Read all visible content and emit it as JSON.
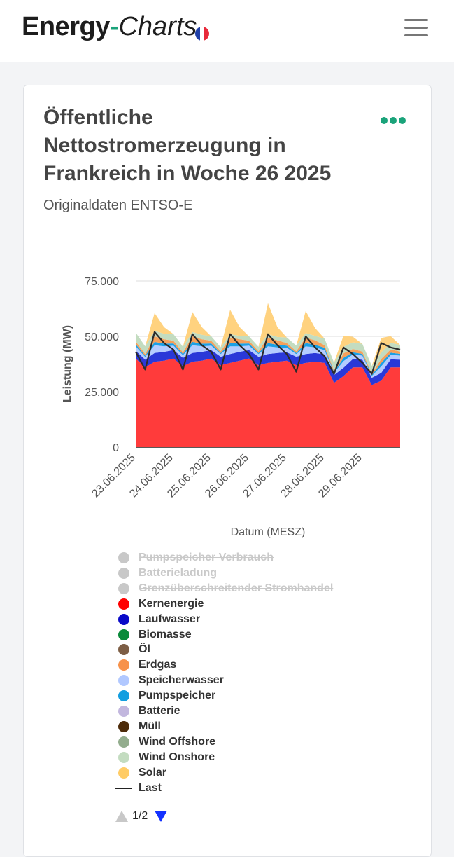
{
  "header": {
    "logo_part1": "Energy",
    "logo_dash": "-",
    "logo_part2": "Charts",
    "flag_colors": [
      "#1f3fa8",
      "#ffffff",
      "#e8293a"
    ],
    "menu_icon": "hamburger-menu-icon"
  },
  "card": {
    "title": "Öffentliche Nettostromerzeugung in Frankreich in Woche 26 2025",
    "subtitle": "Originaldaten ENTSO-E",
    "more_icon": "more-dots-icon",
    "accent_color": "#1aa37a"
  },
  "chart_data": {
    "type": "area",
    "xlabel": "Datum (MESZ)",
    "ylabel": "Leistung (MW)",
    "ylim": [
      0,
      75000
    ],
    "yticks": [
      "0",
      "25.000",
      "50.000",
      "75.000"
    ],
    "xticks": [
      "23.06.2025",
      "24.06.2025",
      "25.06.2025",
      "26.06.2025",
      "27.06.2025",
      "28.06.2025",
      "29.06.2025"
    ],
    "grid": true,
    "hours_per_point": 6,
    "series": [
      {
        "name": "Kernenergie",
        "color": "#ff3b3b",
        "values": [
          40000,
          36000,
          38500,
          39000,
          40000,
          36500,
          38500,
          39000,
          40000,
          37000,
          38000,
          39000,
          40000,
          37000,
          38000,
          38500,
          39000,
          37000,
          38000,
          38500,
          38000,
          29000,
          32000,
          36000,
          36000,
          28000,
          30000,
          36000,
          36000
        ]
      },
      {
        "name": "Laufwasser",
        "color": "#2a38d8",
        "values": [
          3500,
          3500,
          4000,
          4000,
          3800,
          3800,
          4000,
          4000,
          3800,
          3800,
          4000,
          4000,
          3800,
          3800,
          4000,
          4000,
          3800,
          3800,
          4000,
          4000,
          3800,
          3500,
          3800,
          3800,
          3500,
          3300,
          3500,
          3600,
          3500
        ]
      },
      {
        "name": "Speicherwasser",
        "color": "#b4ccff",
        "values": [
          2000,
          1200,
          3500,
          2500,
          2000,
          1200,
          3500,
          2500,
          2000,
          1200,
          3500,
          2500,
          2000,
          1200,
          3500,
          2500,
          2000,
          1200,
          3500,
          2500,
          2000,
          1000,
          3000,
          2000,
          1800,
          800,
          3000,
          2000,
          1800
        ]
      },
      {
        "name": "Pumpspeicher",
        "color": "#1ba0e6",
        "values": [
          1000,
          500,
          1500,
          1200,
          1000,
          500,
          1500,
          1200,
          1000,
          500,
          1500,
          1200,
          1000,
          500,
          1500,
          1200,
          1000,
          500,
          1500,
          1200,
          1000,
          400,
          1500,
          1000,
          800,
          400,
          1500,
          1000,
          800
        ]
      },
      {
        "name": "Erdgas",
        "color": "#f5a05a",
        "values": [
          1200,
          800,
          2500,
          2000,
          1200,
          800,
          2500,
          2000,
          1200,
          800,
          2500,
          2000,
          1200,
          800,
          2500,
          2000,
          1200,
          800,
          2500,
          2000,
          1200,
          700,
          2000,
          1500,
          1000,
          600,
          1800,
          1500,
          1000
        ]
      },
      {
        "name": "Wind Onshore",
        "color": "#c3dcc0",
        "values": [
          4000,
          3500,
          2500,
          2500,
          3000,
          2500,
          2000,
          2000,
          2000,
          1800,
          1500,
          1500,
          2000,
          2000,
          1500,
          1500,
          2500,
          2500,
          2000,
          2000,
          3000,
          3500,
          3000,
          3000,
          3500,
          3500,
          3000,
          3000,
          3000
        ]
      },
      {
        "name": "Solar",
        "color": "#ffd27f",
        "values": [
          0,
          0,
          8000,
          3000,
          0,
          0,
          9000,
          3500,
          0,
          0,
          11000,
          4000,
          0,
          0,
          14000,
          4500,
          0,
          0,
          10000,
          3500,
          0,
          0,
          5000,
          2500,
          0,
          0,
          6500,
          3000,
          0
        ]
      },
      {
        "name": "Last",
        "color": "#2b2b2b",
        "line": true,
        "values": [
          43000,
          35000,
          52000,
          47000,
          44000,
          35000,
          51000,
          46000,
          43000,
          35000,
          51000,
          46000,
          42000,
          35000,
          51000,
          46000,
          42000,
          34000,
          50000,
          45000,
          41000,
          33000,
          45000,
          42000,
          38000,
          33000,
          47000,
          45000,
          44000
        ]
      }
    ]
  },
  "legend": [
    {
      "label": "Pumpspeicher Verbrauch",
      "color": "#c8c8c8",
      "off": true
    },
    {
      "label": "Batterieladung",
      "color": "#c8c8c8",
      "off": true
    },
    {
      "label": "Grenzüberschreitender Stromhandel",
      "color": "#c8c8c8",
      "off": true
    },
    {
      "label": "Kernenergie",
      "color": "#ff0000"
    },
    {
      "label": "Laufwasser",
      "color": "#0a0ac8"
    },
    {
      "label": "Biomasse",
      "color": "#0a8a3a"
    },
    {
      "label": "Öl",
      "color": "#7d5e45"
    },
    {
      "label": "Erdgas",
      "color": "#f7924b"
    },
    {
      "label": "Speicherwasser",
      "color": "#b1c8ff"
    },
    {
      "label": "Pumpspeicher",
      "color": "#139ee0"
    },
    {
      "label": "Batterie",
      "color": "#c2b7de"
    },
    {
      "label": "Müll",
      "color": "#4d2b0a"
    },
    {
      "label": "Wind Offshore",
      "color": "#93ad8e"
    },
    {
      "label": "Wind Onshore",
      "color": "#c3dcc0"
    },
    {
      "label": "Solar",
      "color": "#ffcc66"
    },
    {
      "label": "Last",
      "color": "#222222",
      "line": true
    }
  ],
  "pager": {
    "text": "1/2"
  }
}
